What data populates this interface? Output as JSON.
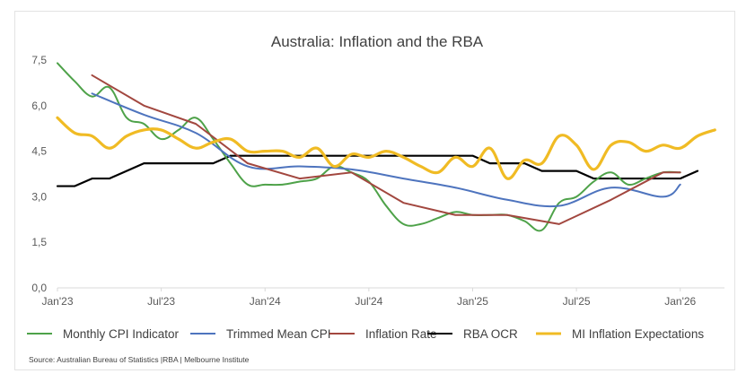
{
  "chart_data": {
    "type": "line",
    "title": "Australia: Inflation and the RBA",
    "xlabel": "",
    "ylabel": "",
    "ylim": [
      0,
      7.5
    ],
    "yticks": [
      "0,0",
      "1,5",
      "3,0",
      "4,5",
      "6,0",
      "7,5"
    ],
    "ytick_values": [
      0,
      1.5,
      3.0,
      4.5,
      6.0,
      7.5
    ],
    "xticks": [
      "Jan'23",
      "Jul'23",
      "Jan'24",
      "Jul'24",
      "Jan'25",
      "Jul'25",
      "Jan'26"
    ],
    "xtick_months": [
      0,
      6,
      12,
      18,
      24,
      30,
      36
    ],
    "x_unit": "months since Jan 2023",
    "grid": false,
    "legend_position": "bottom",
    "series": [
      {
        "name": "Monthly CPI Indicator",
        "color": "#4ea249",
        "smooth": true,
        "x": [
          0,
          1,
          2,
          3,
          4,
          5,
          6,
          7,
          8,
          9,
          10,
          11,
          12,
          13,
          14,
          15,
          16,
          17,
          18,
          19,
          20,
          21,
          22,
          23,
          24,
          25,
          26,
          27,
          28,
          29,
          30,
          31,
          32,
          33,
          34,
          35,
          36
        ],
        "values": [
          7.4,
          6.8,
          6.3,
          6.6,
          5.6,
          5.4,
          4.9,
          5.2,
          5.6,
          4.9,
          4.1,
          3.4,
          3.4,
          3.4,
          3.5,
          3.6,
          4.0,
          3.8,
          3.5,
          2.7,
          2.1,
          2.1,
          2.3,
          2.5,
          2.4,
          2.4,
          2.4,
          2.2,
          1.9,
          2.8,
          3.0,
          3.5,
          3.8,
          3.4,
          3.6,
          3.8,
          3.8
        ]
      },
      {
        "name": "Trimmed Mean CPI",
        "color": "#4e74be",
        "smooth": true,
        "x": [
          2,
          5,
          8,
          11,
          14,
          17,
          20,
          23,
          26,
          29,
          32,
          35,
          36
        ],
        "values": [
          6.4,
          5.7,
          5.1,
          4.0,
          4.0,
          3.9,
          3.6,
          3.3,
          2.9,
          2.7,
          3.3,
          3.0,
          3.4
        ]
      },
      {
        "name": "Inflation Rate",
        "color": "#a2473f",
        "smooth": false,
        "x": [
          2,
          5,
          8,
          11,
          14,
          17,
          20,
          23,
          26,
          29,
          32,
          35,
          36
        ],
        "values": [
          7.0,
          6.0,
          5.4,
          4.1,
          3.6,
          3.8,
          2.8,
          2.4,
          2.4,
          2.1,
          2.9,
          3.8,
          3.8
        ]
      },
      {
        "name": "RBA OCR",
        "color": "#000000",
        "smooth": false,
        "x": [
          0,
          1,
          2,
          3,
          4,
          5,
          6,
          7,
          8,
          9,
          10,
          11,
          12,
          13,
          14,
          15,
          16,
          17,
          18,
          19,
          20,
          21,
          22,
          23,
          24,
          25,
          26,
          27,
          28,
          29,
          30,
          31,
          32,
          33,
          34,
          35,
          36,
          37
        ],
        "values": [
          3.35,
          3.35,
          3.6,
          3.6,
          3.85,
          4.1,
          4.1,
          4.1,
          4.1,
          4.1,
          4.35,
          4.35,
          4.35,
          4.35,
          4.35,
          4.35,
          4.35,
          4.35,
          4.35,
          4.35,
          4.35,
          4.35,
          4.35,
          4.35,
          4.35,
          4.1,
          4.1,
          4.1,
          3.85,
          3.85,
          3.85,
          3.6,
          3.6,
          3.6,
          3.6,
          3.6,
          3.6,
          3.85
        ]
      },
      {
        "name": "MI Inflation Expectations",
        "color": "#f0bb24",
        "smooth": true,
        "x": [
          0,
          1,
          2,
          3,
          4,
          5,
          6,
          7,
          8,
          9,
          10,
          11,
          12,
          13,
          14,
          15,
          16,
          17,
          18,
          19,
          20,
          21,
          22,
          23,
          24,
          25,
          26,
          27,
          28,
          29,
          30,
          31,
          32,
          33,
          34,
          35,
          36,
          37,
          38
        ],
        "values": [
          5.6,
          5.1,
          5.0,
          4.6,
          5.0,
          5.2,
          5.2,
          4.9,
          4.6,
          4.8,
          4.9,
          4.5,
          4.5,
          4.5,
          4.3,
          4.6,
          4.0,
          4.4,
          4.3,
          4.5,
          4.3,
          4.0,
          3.8,
          4.3,
          4.0,
          4.6,
          3.6,
          4.2,
          4.1,
          5.0,
          4.7,
          3.9,
          4.7,
          4.8,
          4.5,
          4.7,
          4.6,
          5.0,
          5.2
        ]
      }
    ],
    "source": "Source: Australian Bureau of Statistics |RBA | Melbourne Institute"
  }
}
